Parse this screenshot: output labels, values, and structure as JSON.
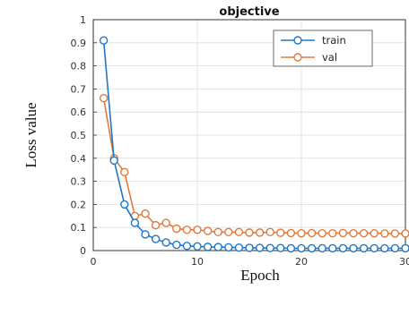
{
  "chart_data": {
    "type": "line",
    "title": "objective",
    "xlabel": "Epoch",
    "ylabel": "Loss value",
    "xlim": [
      0,
      30
    ],
    "ylim": [
      0,
      1
    ],
    "xticks": [
      "0",
      "10",
      "20",
      "30"
    ],
    "yticks": [
      "0",
      "0.1",
      "0.2",
      "0.3",
      "0.4",
      "0.5",
      "0.6",
      "0.7",
      "0.8",
      "0.9",
      "1"
    ],
    "grid": true,
    "legend_position": "top-right",
    "x": [
      1,
      2,
      3,
      4,
      5,
      6,
      7,
      8,
      9,
      10,
      11,
      12,
      13,
      14,
      15,
      16,
      17,
      18,
      19,
      20,
      21,
      22,
      23,
      24,
      25,
      26,
      27,
      28,
      29,
      30
    ],
    "series": [
      {
        "name": "train",
        "color": "#1f77c8",
        "values": [
          0.91,
          0.39,
          0.2,
          0.12,
          0.07,
          0.05,
          0.035,
          0.025,
          0.02,
          0.018,
          0.016,
          0.015,
          0.014,
          0.013,
          0.012,
          0.012,
          0.011,
          0.011,
          0.01,
          0.01,
          0.01,
          0.01,
          0.01,
          0.01,
          0.01,
          0.01,
          0.01,
          0.01,
          0.01,
          0.01
        ]
      },
      {
        "name": "val",
        "color": "#e07a3a",
        "values": [
          0.66,
          0.4,
          0.34,
          0.15,
          0.16,
          0.11,
          0.12,
          0.095,
          0.09,
          0.09,
          0.085,
          0.08,
          0.08,
          0.08,
          0.078,
          0.078,
          0.08,
          0.077,
          0.076,
          0.075,
          0.076,
          0.075,
          0.075,
          0.076,
          0.075,
          0.075,
          0.075,
          0.074,
          0.074,
          0.074
        ]
      }
    ]
  }
}
